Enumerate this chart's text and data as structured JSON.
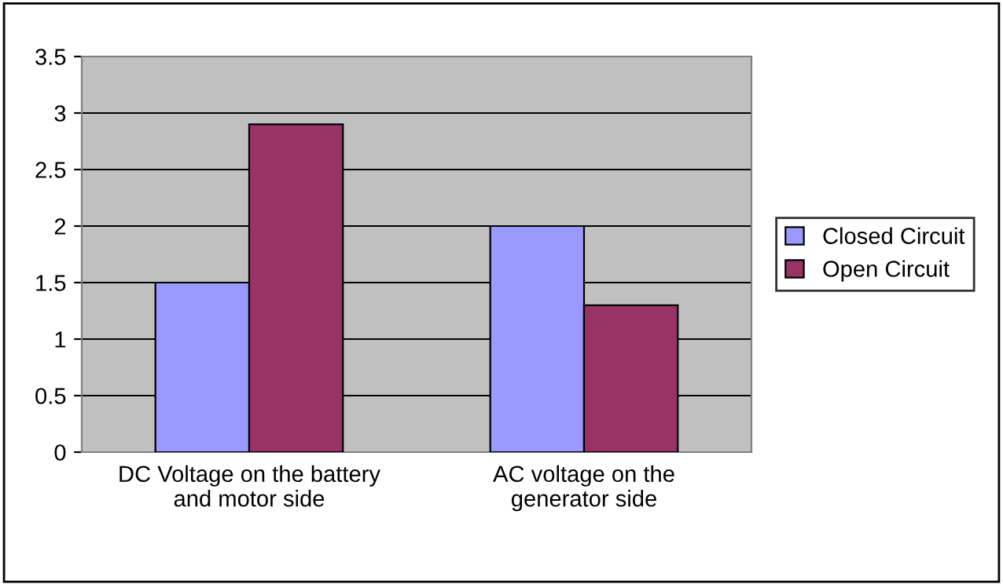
{
  "chart_data": {
    "type": "bar",
    "categories": [
      "DC Voltage on the battery\nand motor side",
      "AC voltage on the\ngenerator side"
    ],
    "series": [
      {
        "name": "Closed Circuit",
        "color": "#9999ff",
        "values": [
          1.5,
          2.0
        ]
      },
      {
        "name": "Open Circuit",
        "color": "#993366",
        "values": [
          2.9,
          1.3
        ]
      }
    ],
    "ylim": [
      0,
      3.5
    ],
    "yticks": [
      0,
      {
        "value": 0.5,
        "label": "0.5"
      },
      1,
      {
        "value": 1.5,
        "label": "1.5"
      },
      2,
      {
        "value": 2.5,
        "label": "2.5"
      },
      3,
      {
        "value": 3.5,
        "label": "3.5"
      }
    ],
    "grid": "y",
    "legend": "right"
  }
}
